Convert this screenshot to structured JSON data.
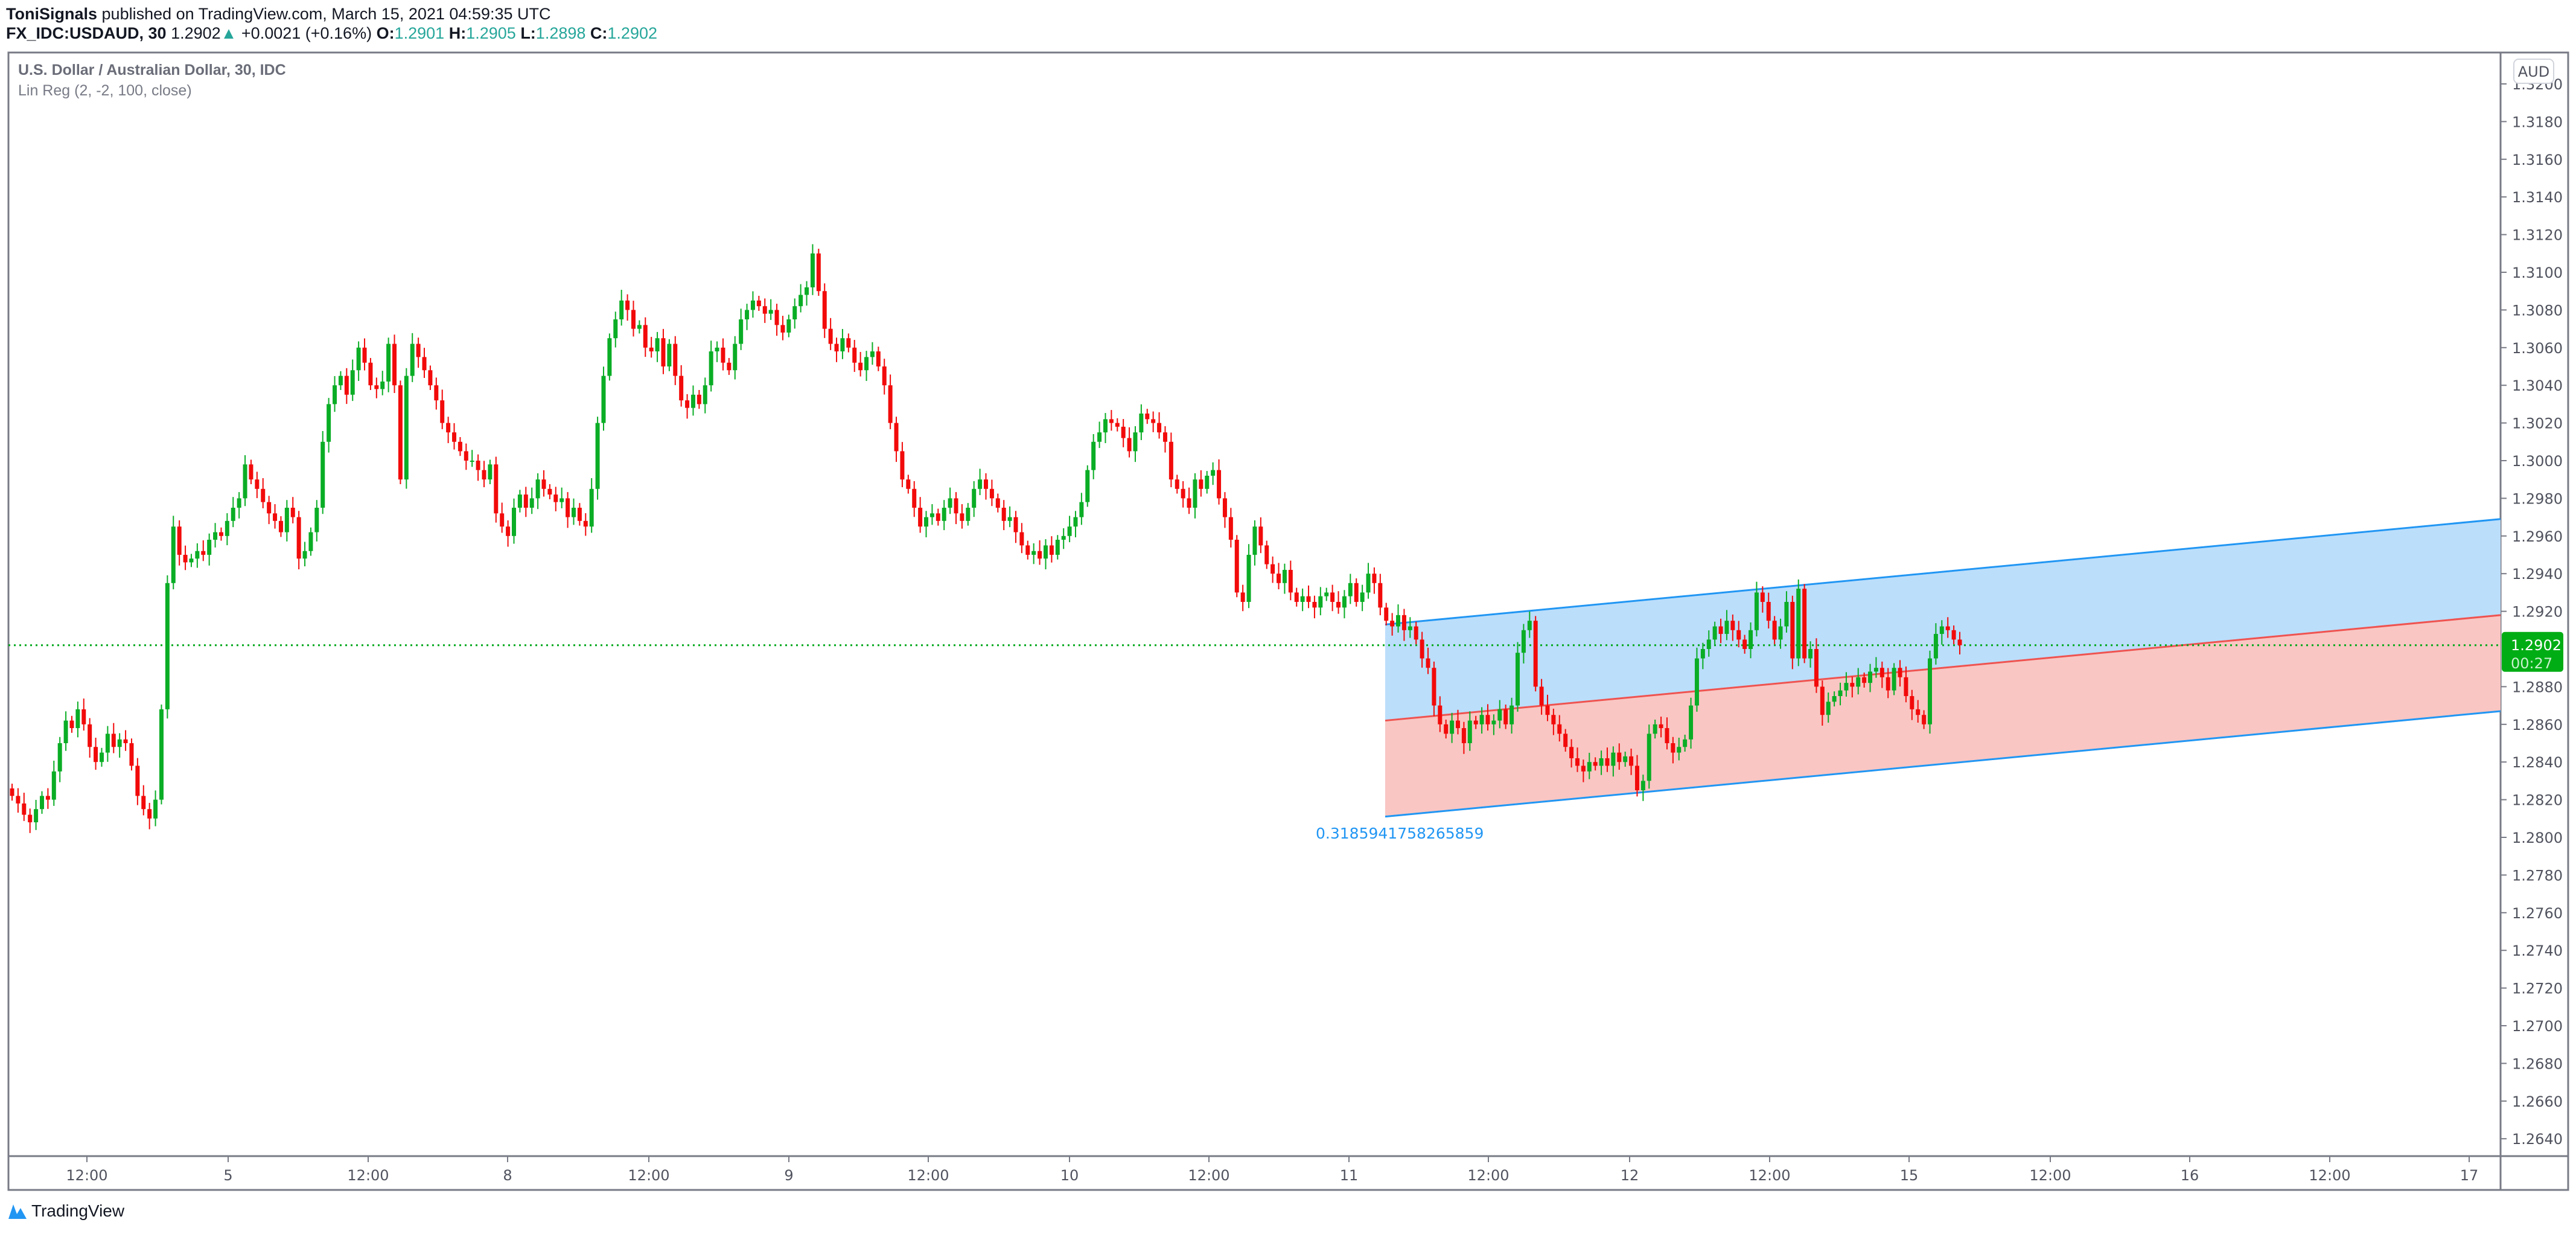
{
  "header": {
    "author": "ToniSignals",
    "published": "published on TradingView.com, March 15, 2021 04:59:35 UTC",
    "symbol": "FX_IDC:USDAUD, 30",
    "last": "1.2902",
    "change": "+0.0021 (+0.16%)",
    "o_label": "O:",
    "o": "1.2901",
    "h_label": "H:",
    "h": "1.2905",
    "l_label": "L:",
    "l": "1.2898",
    "c_label": "C:",
    "c": "1.2902",
    "up_icon": "triangle-up-icon"
  },
  "legend": {
    "title": "U.S. Dollar / Australian Dollar, 30, IDC",
    "indicator": "Lin Reg (2, -2, 100, close)"
  },
  "footer": {
    "brand": "TradingView"
  },
  "colors": {
    "up": "#0aad25",
    "down": "#f20a0a",
    "channel_upper_fill": "#bbdefb",
    "channel_lower_fill": "#f9c6c3",
    "channel_edge": "#2196f3",
    "channel_mid": "#ef5350",
    "price_line": "#00a81c"
  },
  "chart_data": {
    "type": "candlestick",
    "interval": "30",
    "currency_label": "AUD",
    "ylim": [
      1.263,
      1.321
    ],
    "y_ticks": [
      "1.3200",
      "1.3180",
      "1.3160",
      "1.3140",
      "1.3120",
      "1.3100",
      "1.3080",
      "1.3060",
      "1.3040",
      "1.3020",
      "1.3000",
      "1.2980",
      "1.2960",
      "1.2940",
      "1.2920",
      "1.2880",
      "1.2860",
      "1.2840",
      "1.2820",
      "1.2800",
      "1.2780",
      "1.2760",
      "1.2740",
      "1.2720",
      "1.2700",
      "1.2680",
      "1.2660",
      "1.2640"
    ],
    "x_ticks": [
      "12:00",
      "5",
      "12:00",
      "8",
      "12:00",
      "9",
      "12:00",
      "10",
      "12:00",
      "11",
      "12:00",
      "12",
      "12:00",
      "15",
      "12:00",
      "16",
      "12:00",
      "17"
    ],
    "last_price": {
      "value": 1.2902,
      "label": "1.2902",
      "countdown": "00:27"
    },
    "closes": [
      1.2822,
      1.2818,
      1.2812,
      1.2808,
      1.2815,
      1.2822,
      1.282,
      1.2835,
      1.285,
      1.2862,
      1.2858,
      1.2868,
      1.286,
      1.2848,
      1.284,
      1.2845,
      1.2855,
      1.2848,
      1.2852,
      1.285,
      1.2838,
      1.2822,
      1.2815,
      1.281,
      1.282,
      1.2868,
      1.2935,
      1.2965,
      1.295,
      1.2946,
      1.2948,
      1.2952,
      1.295,
      1.2958,
      1.2962,
      1.296,
      1.2968,
      1.2975,
      1.298,
      1.2998,
      1.299,
      1.2985,
      1.2978,
      1.2972,
      1.2968,
      1.2962,
      1.2975,
      1.297,
      1.2948,
      1.2952,
      1.2962,
      1.2975,
      1.301,
      1.303,
      1.304,
      1.3045,
      1.3035,
      1.3048,
      1.306,
      1.3052,
      1.304,
      1.3038,
      1.3042,
      1.3062,
      1.304,
      1.299,
      1.3045,
      1.3062,
      1.3055,
      1.3048,
      1.304,
      1.3032,
      1.302,
      1.3015,
      1.301,
      1.3005,
      1.3,
      1.3,
      1.2995,
      1.299,
      1.2998,
      1.2972,
      1.2965,
      1.296,
      1.2975,
      1.2982,
      1.2975,
      1.298,
      1.299,
      1.2985,
      1.2982,
      1.2978,
      1.298,
      1.297,
      1.2975,
      1.2968,
      1.2965,
      1.2985,
      1.302,
      1.3045,
      1.3065,
      1.3075,
      1.3085,
      1.308,
      1.307,
      1.3072,
      1.306,
      1.3058,
      1.3065,
      1.305,
      1.3062,
      1.3045,
      1.3032,
      1.3028,
      1.3035,
      1.303,
      1.304,
      1.3058,
      1.306,
      1.3052,
      1.3048,
      1.3062,
      1.3075,
      1.308,
      1.3085,
      1.3082,
      1.3078,
      1.308,
      1.3072,
      1.3068,
      1.3075,
      1.3082,
      1.3088,
      1.3092,
      1.311,
      1.309,
      1.307,
      1.3062,
      1.3058,
      1.3065,
      1.306,
      1.3052,
      1.3048,
      1.3055,
      1.3058,
      1.305,
      1.304,
      1.302,
      1.3005,
      1.299,
      1.2985,
      1.2975,
      1.2965,
      1.297,
      1.2972,
      1.2968,
      1.2975,
      1.298,
      1.2972,
      1.2968,
      1.2975,
      1.2985,
      1.299,
      1.2985,
      1.298,
      1.2975,
      1.2968,
      1.297,
      1.2962,
      1.2955,
      1.295,
      1.2952,
      1.2948,
      1.2955,
      1.295,
      1.2958,
      1.296,
      1.2965,
      1.297,
      1.2978,
      1.2995,
      1.301,
      1.3015,
      1.3022,
      1.302,
      1.3018,
      1.3012,
      1.3005,
      1.3015,
      1.3025,
      1.3022,
      1.302,
      1.3015,
      1.301,
      1.299,
      1.2985,
      1.298,
      1.2975,
      1.299,
      1.2985,
      1.2992,
      1.2995,
      1.298,
      1.297,
      1.2958,
      1.293,
      1.2925,
      1.295,
      1.2965,
      1.2955,
      1.2945,
      1.294,
      1.2935,
      1.2942,
      1.293,
      1.2925,
      1.2928,
      1.2925,
      1.2922,
      1.2928,
      1.293,
      1.2925,
      1.2922,
      1.2928,
      1.2935,
      1.2925,
      1.293,
      1.294,
      1.2935,
      1.2922,
      1.2915,
      1.2912,
      1.2918,
      1.291,
      1.2912,
      1.2905,
      1.2895,
      1.289,
      1.287,
      1.286,
      1.2855,
      1.2862,
      1.2858,
      1.285,
      1.2862,
      1.286,
      1.2865,
      1.286,
      1.2862,
      1.2868,
      1.286,
      1.287,
      1.2898,
      1.291,
      1.2915,
      1.288,
      1.287,
      1.2865,
      1.286,
      1.2855,
      1.2848,
      1.2842,
      1.2838,
      1.2835,
      1.284,
      1.2838,
      1.2842,
      1.2838,
      1.2845,
      1.284,
      1.2843,
      1.2838,
      1.2825,
      1.283,
      1.2855,
      1.286,
      1.2858,
      1.285,
      1.2845,
      1.2848,
      1.2852,
      1.287,
      1.2895,
      1.29,
      1.2905,
      1.2912,
      1.2908,
      1.2915,
      1.291,
      1.2905,
      1.29,
      1.291,
      1.293,
      1.2925,
      1.2915,
      1.2905,
      1.2912,
      1.2925,
      1.2895,
      1.2932,
      1.2895,
      1.29,
      1.288,
      1.2865,
      1.2872,
      1.2875,
      1.2878,
      1.2882,
      1.288,
      1.2885,
      1.2882,
      1.2888,
      1.289,
      1.2885,
      1.2878,
      1.289,
      1.2885,
      1.2875,
      1.2868,
      1.2865,
      1.286,
      1.2895,
      1.2908,
      1.2912,
      1.291,
      1.2905,
      1.2902
    ],
    "lin_reg": {
      "upper": [
        1.2913,
        1.2969
      ],
      "middle": [
        1.2862,
        1.2918
      ],
      "lower": [
        1.2811,
        1.2867
      ],
      "pearson_r_label": "0.3185941758265859"
    }
  }
}
